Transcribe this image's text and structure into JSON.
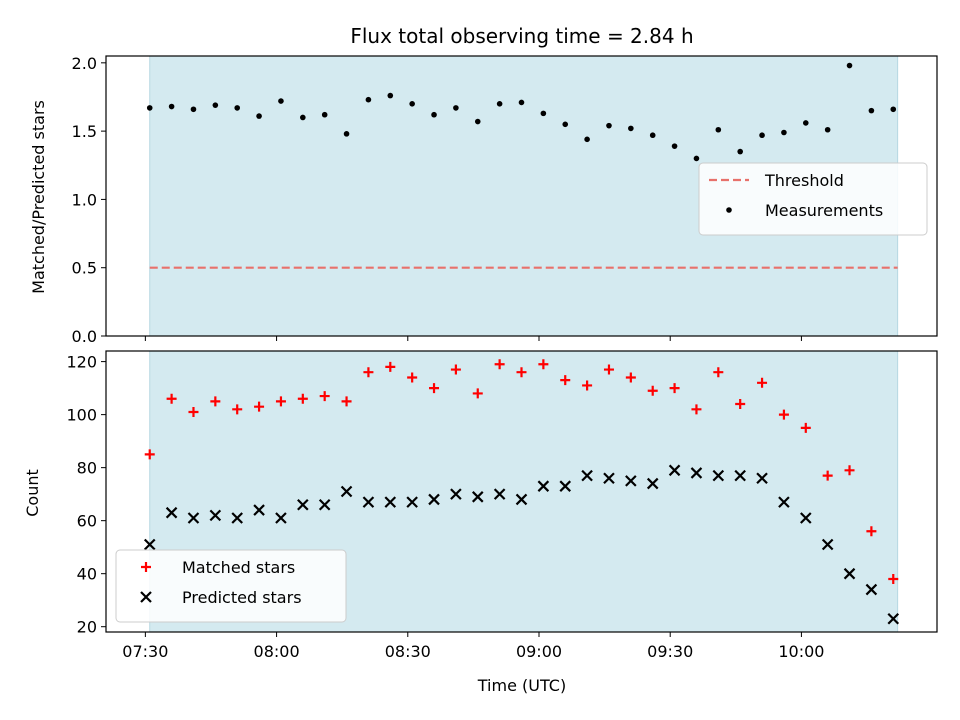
{
  "chart_data": [
    {
      "type": "scatter",
      "title": "Flux total observing time = 2.84 h",
      "ylabel": "Matched/Predicted stars",
      "xlabel": "",
      "ylim": [
        0,
        2.05
      ],
      "yticks": [
        "0.0",
        "0.5",
        "1.0",
        "1.5",
        "2.0"
      ],
      "shaded_span": [
        "07:31",
        "10:22"
      ],
      "shaded_color": "#d4eaf0",
      "threshold": {
        "name": "Threshold",
        "value": 0.5,
        "color": "#e8716b"
      },
      "legend_position": "center-right",
      "series": [
        {
          "name": "Measurements",
          "marker": "dot",
          "color": "#000000",
          "x": [
            "07:31",
            "07:36",
            "07:41",
            "07:46",
            "07:51",
            "07:56",
            "08:01",
            "08:06",
            "08:11",
            "08:16",
            "08:21",
            "08:26",
            "08:31",
            "08:36",
            "08:41",
            "08:46",
            "08:51",
            "08:56",
            "09:01",
            "09:06",
            "09:11",
            "09:16",
            "09:21",
            "09:26",
            "09:31",
            "09:36",
            "09:41",
            "09:46",
            "09:51",
            "09:56",
            "10:01",
            "10:06",
            "10:11",
            "10:16",
            "10:21"
          ],
          "values": [
            1.67,
            1.68,
            1.66,
            1.69,
            1.67,
            1.61,
            1.72,
            1.6,
            1.62,
            1.48,
            1.73,
            1.76,
            1.7,
            1.62,
            1.67,
            1.57,
            1.7,
            1.71,
            1.63,
            1.55,
            1.44,
            1.54,
            1.52,
            1.47,
            1.39,
            1.3,
            1.51,
            1.35,
            1.47,
            1.49,
            1.56,
            1.51,
            1.98,
            1.65,
            1.66
          ]
        }
      ]
    },
    {
      "type": "scatter",
      "title": "",
      "ylabel": "Count",
      "xlabel": "Time (UTC)",
      "ylim": [
        18,
        124
      ],
      "yticks": [
        "20",
        "40",
        "60",
        "80",
        "100",
        "120"
      ],
      "xlim": [
        "07:21",
        "10:31"
      ],
      "xticks": [
        "07:30",
        "08:00",
        "08:30",
        "09:00",
        "09:30",
        "10:00"
      ],
      "shaded_span": [
        "07:31",
        "10:22"
      ],
      "shaded_color": "#d4eaf0",
      "legend_position": "lower-left",
      "series": [
        {
          "name": "Matched stars",
          "marker": "plus",
          "color": "#ff0000",
          "x": [
            "07:31",
            "07:36",
            "07:41",
            "07:46",
            "07:51",
            "07:56",
            "08:01",
            "08:06",
            "08:11",
            "08:16",
            "08:21",
            "08:26",
            "08:31",
            "08:36",
            "08:41",
            "08:46",
            "08:51",
            "08:56",
            "09:01",
            "09:06",
            "09:11",
            "09:16",
            "09:21",
            "09:26",
            "09:31",
            "09:36",
            "09:41",
            "09:46",
            "09:51",
            "09:56",
            "10:01",
            "10:06",
            "10:11",
            "10:16",
            "10:21"
          ],
          "values": [
            85,
            106,
            101,
            105,
            102,
            103,
            105,
            106,
            107,
            105,
            116,
            118,
            114,
            110,
            117,
            108,
            119,
            116,
            119,
            113,
            111,
            117,
            114,
            109,
            110,
            102,
            116,
            104,
            112,
            100,
            95,
            77,
            79,
            56,
            38
          ]
        },
        {
          "name": "Predicted stars",
          "marker": "x",
          "color": "#000000",
          "x": [
            "07:31",
            "07:36",
            "07:41",
            "07:46",
            "07:51",
            "07:56",
            "08:01",
            "08:06",
            "08:11",
            "08:16",
            "08:21",
            "08:26",
            "08:31",
            "08:36",
            "08:41",
            "08:46",
            "08:51",
            "08:56",
            "09:01",
            "09:06",
            "09:11",
            "09:16",
            "09:21",
            "09:26",
            "09:31",
            "09:36",
            "09:41",
            "09:46",
            "09:51",
            "09:56",
            "10:01",
            "10:06",
            "10:11",
            "10:16",
            "10:21"
          ],
          "values": [
            51,
            63,
            61,
            62,
            61,
            64,
            61,
            66,
            66,
            71,
            67,
            67,
            67,
            68,
            70,
            69,
            70,
            68,
            73,
            73,
            77,
            76,
            75,
            74,
            79,
            78,
            77,
            77,
            76,
            67,
            61,
            51,
            40,
            34,
            23
          ]
        }
      ]
    }
  ]
}
